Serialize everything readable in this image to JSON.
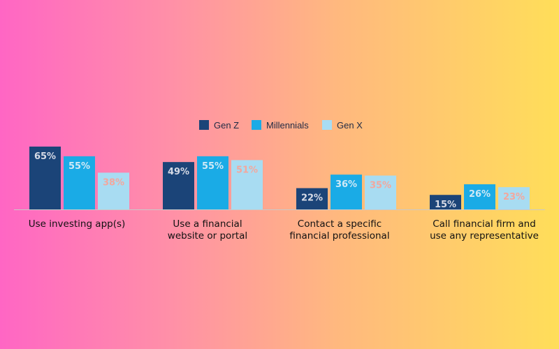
{
  "chart_data": {
    "type": "bar",
    "title": "",
    "xlabel": "",
    "ylabel": "",
    "ylim": [
      0,
      70
    ],
    "grid": false,
    "legend_position": "top-center",
    "categories": [
      [
        "Use investing app(s)"
      ],
      [
        "Use a financial",
        "website or portal"
      ],
      [
        "Contact a specific",
        "financial professional"
      ],
      [
        "Call financial firm and",
        "use any representative"
      ]
    ],
    "series": [
      {
        "name": "Gen Z",
        "values": [
          65,
          49,
          22,
          15
        ],
        "labels": [
          "65%",
          "49%",
          "22%",
          "15%"
        ],
        "color": "#1b4478",
        "label_color": "#d7dbe6"
      },
      {
        "name": "Millennials",
        "values": [
          55,
          55,
          36,
          26
        ],
        "labels": [
          "55%",
          "55%",
          "36%",
          "26%"
        ],
        "color": "#1aabe6",
        "label_color": "#cfe9f6"
      },
      {
        "name": "Gen X",
        "values": [
          38,
          51,
          35,
          23
        ],
        "labels": [
          "38%",
          "51%",
          "35%",
          "23%"
        ],
        "color": "#a8dcf2",
        "label_color": "#f3a79d"
      }
    ],
    "axis_color": "#c9c9c9"
  }
}
